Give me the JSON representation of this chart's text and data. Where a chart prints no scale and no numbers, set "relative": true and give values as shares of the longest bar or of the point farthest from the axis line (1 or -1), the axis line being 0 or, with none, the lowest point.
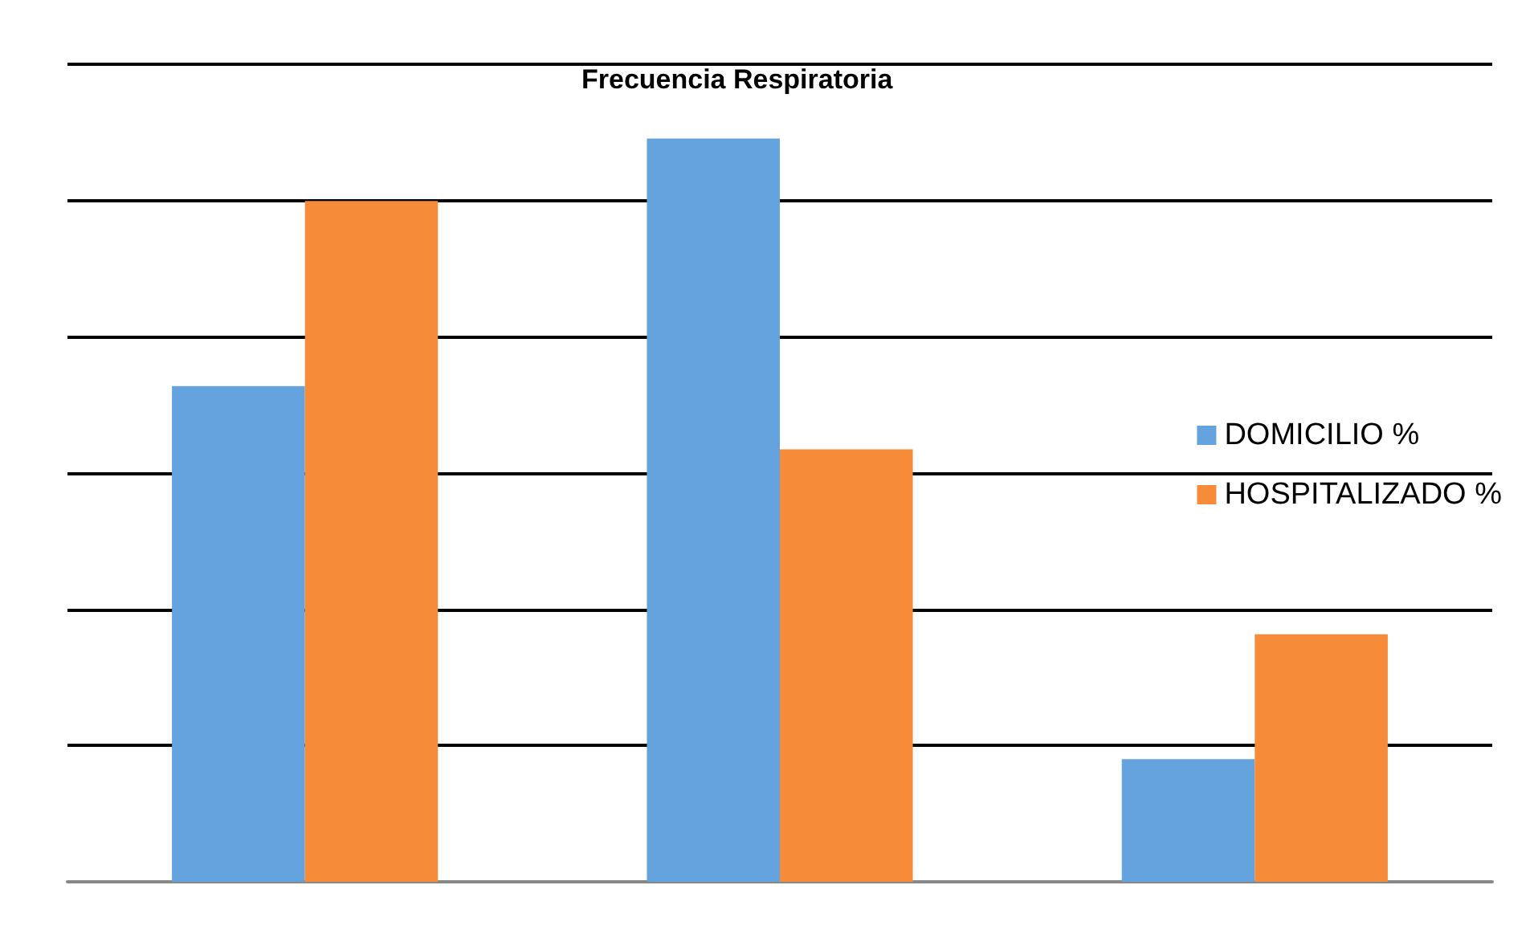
{
  "chart_data": {
    "type": "bar",
    "title": "Frecuencia Respiratoria",
    "relative": true,
    "categories": [
      null,
      null,
      null
    ],
    "series": [
      {
        "name": "DOMICILIO %",
        "color": "#65a3de",
        "values": [
          0.667,
          1,
          0.165
        ]
      },
      {
        "name": "HOSPITALIZADO %",
        "color": "#f68b3a",
        "values": [
          0.916,
          0.582,
          0.333
        ]
      }
    ],
    "grid": "y",
    "legend": "right"
  }
}
